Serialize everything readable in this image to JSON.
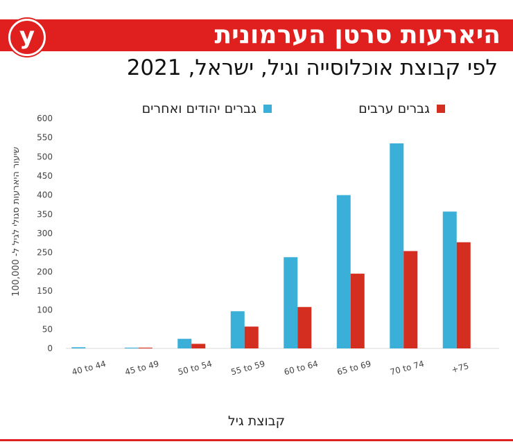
{
  "title": "היארעות סרטן הערמונית",
  "logo": "y",
  "chart_data": {
    "type": "bar",
    "title": "לפי קבוצת אוכלוסייה וגיל, ישראל, 2021",
    "x_label": "קבוצת גיל",
    "y_label": "שיעור היארעות סגולי לגיל ל- 100,000",
    "categories": [
      "40 to 44",
      "45 to 49",
      "50 to 54",
      "55 to 59",
      "60 to 64",
      "65 to 69",
      "70 to 74",
      "+75"
    ],
    "series": [
      {
        "name": "גברים יהודים ואחרים",
        "color": "#3ab0d8",
        "values": [
          3,
          2,
          25,
          97,
          238,
          400,
          535,
          357
        ]
      },
      {
        "name": "גברים ערבים",
        "color": "#d42e20",
        "values": [
          0,
          2,
          12,
          57,
          108,
          195,
          254,
          277
        ]
      }
    ],
    "ylim": [
      0,
      600
    ],
    "yticks": [
      0,
      50,
      100,
      150,
      200,
      250,
      300,
      350,
      400,
      450,
      500,
      550,
      600
    ]
  }
}
